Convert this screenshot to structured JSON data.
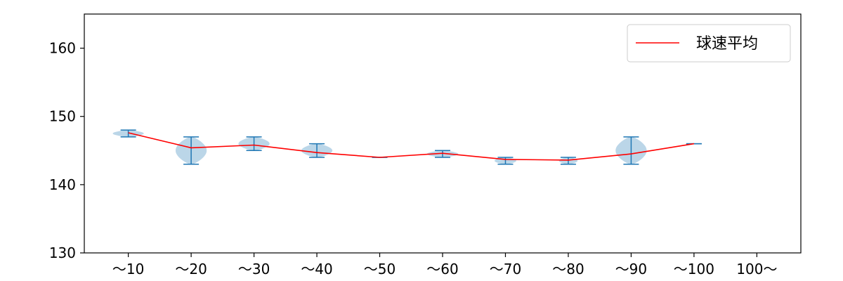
{
  "chart_data": {
    "type": "violin",
    "categories": [
      "〜10",
      "〜20",
      "〜30",
      "〜40",
      "〜50",
      "〜60",
      "〜70",
      "〜80",
      "〜90",
      "〜100",
      "100〜"
    ],
    "ylim": [
      130,
      165
    ],
    "y_ticks": [
      130,
      140,
      150,
      160
    ],
    "grid": false,
    "legend_position": "top-right",
    "colors": {
      "violin_fill": "#1f77b4",
      "violin_stroke": "#1f77b4",
      "average_line": "#ff0000",
      "axes": "#000000"
    },
    "violins": [
      {
        "category": "〜10",
        "min": 147,
        "max": 148,
        "median": 147.5,
        "width_scale": 0.45
      },
      {
        "category": "〜20",
        "min": 143,
        "max": 147,
        "median": 145,
        "width_scale": 0.45
      },
      {
        "category": "〜30",
        "min": 145,
        "max": 147,
        "median": 146,
        "width_scale": 0.45
      },
      {
        "category": "〜40",
        "min": 144,
        "max": 146,
        "median": 145,
        "width_scale": 0.45
      },
      {
        "category": "〜50",
        "min": 144,
        "max": 144,
        "median": 144,
        "width_scale": 0.1
      },
      {
        "category": "〜60",
        "min": 144,
        "max": 145,
        "median": 144.5,
        "width_scale": 0.45
      },
      {
        "category": "〜70",
        "min": 143,
        "max": 144,
        "median": 143.5,
        "width_scale": 0.3
      },
      {
        "category": "〜80",
        "min": 143,
        "max": 144,
        "median": 143.5,
        "width_scale": 0.25
      },
      {
        "category": "〜90",
        "min": 143,
        "max": 147,
        "median": 145,
        "width_scale": 0.45
      },
      {
        "category": "〜100",
        "min": 146,
        "max": 146,
        "median": 146,
        "width_scale": 0.1
      }
    ],
    "series": [
      {
        "name": "球速平均",
        "categories": [
          "〜10",
          "〜20",
          "〜30",
          "〜40",
          "〜50",
          "〜60",
          "〜70",
          "〜80",
          "〜90",
          "〜100"
        ],
        "values": [
          147.6,
          145.4,
          145.8,
          144.7,
          144.0,
          144.6,
          143.7,
          143.6,
          144.5,
          146.0
        ]
      }
    ]
  }
}
